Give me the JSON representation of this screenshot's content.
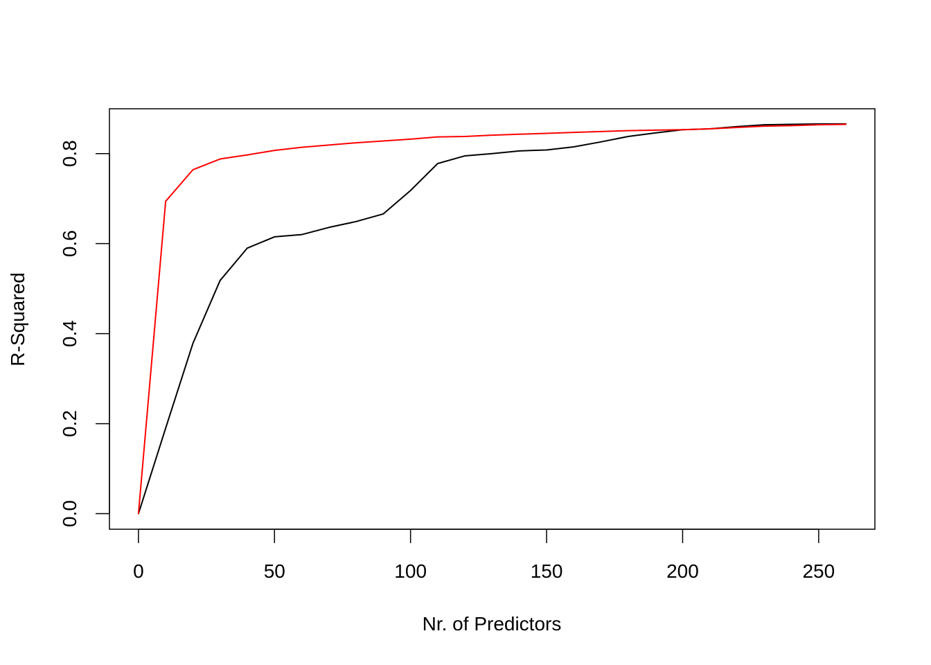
{
  "chart_data": {
    "type": "line",
    "title": "",
    "xlabel": "Nr. of Predictors",
    "ylabel": "R-Squared",
    "xlim": [
      -10.66,
      270.66
    ],
    "ylim": [
      -0.0346,
      0.8996
    ],
    "x_ticks": [
      {
        "value": 0,
        "label": "0"
      },
      {
        "value": 50,
        "label": "50"
      },
      {
        "value": 100,
        "label": "100"
      },
      {
        "value": 150,
        "label": "150"
      },
      {
        "value": 200,
        "label": "200"
      },
      {
        "value": 250,
        "label": "250"
      }
    ],
    "y_ticks": [
      {
        "value": 0.0,
        "label": "0.0"
      },
      {
        "value": 0.2,
        "label": "0.2"
      },
      {
        "value": 0.4,
        "label": "0.4"
      },
      {
        "value": 0.6,
        "label": "0.6"
      },
      {
        "value": 0.8,
        "label": "0.8"
      }
    ],
    "grid": false,
    "legend": "none",
    "series": [
      {
        "color": "#000000",
        "x": [
          0,
          10,
          20,
          30,
          40,
          50,
          60,
          70,
          80,
          90,
          100,
          110,
          120,
          130,
          140,
          150,
          160,
          170,
          180,
          190,
          200,
          210,
          220,
          230,
          240,
          250,
          260
        ],
        "y": [
          0.0,
          0.19,
          0.378,
          0.518,
          0.59,
          0.615,
          0.62,
          0.636,
          0.649,
          0.666,
          0.718,
          0.778,
          0.795,
          0.8,
          0.806,
          0.808,
          0.815,
          0.826,
          0.838,
          0.846,
          0.853,
          0.855,
          0.86,
          0.864,
          0.865,
          0.866,
          0.866
        ]
      },
      {
        "color": "#ff0000",
        "x": [
          0,
          10,
          20,
          30,
          40,
          50,
          60,
          70,
          80,
          90,
          100,
          110,
          120,
          130,
          140,
          150,
          160,
          170,
          180,
          190,
          200,
          210,
          220,
          230,
          240,
          250,
          260
        ],
        "y": [
          0.0,
          0.694,
          0.764,
          0.788,
          0.797,
          0.807,
          0.814,
          0.819,
          0.824,
          0.828,
          0.832,
          0.837,
          0.838,
          0.841,
          0.843,
          0.845,
          0.847,
          0.849,
          0.851,
          0.852,
          0.853,
          0.855,
          0.858,
          0.861,
          0.862,
          0.864,
          0.865
        ]
      }
    ]
  }
}
